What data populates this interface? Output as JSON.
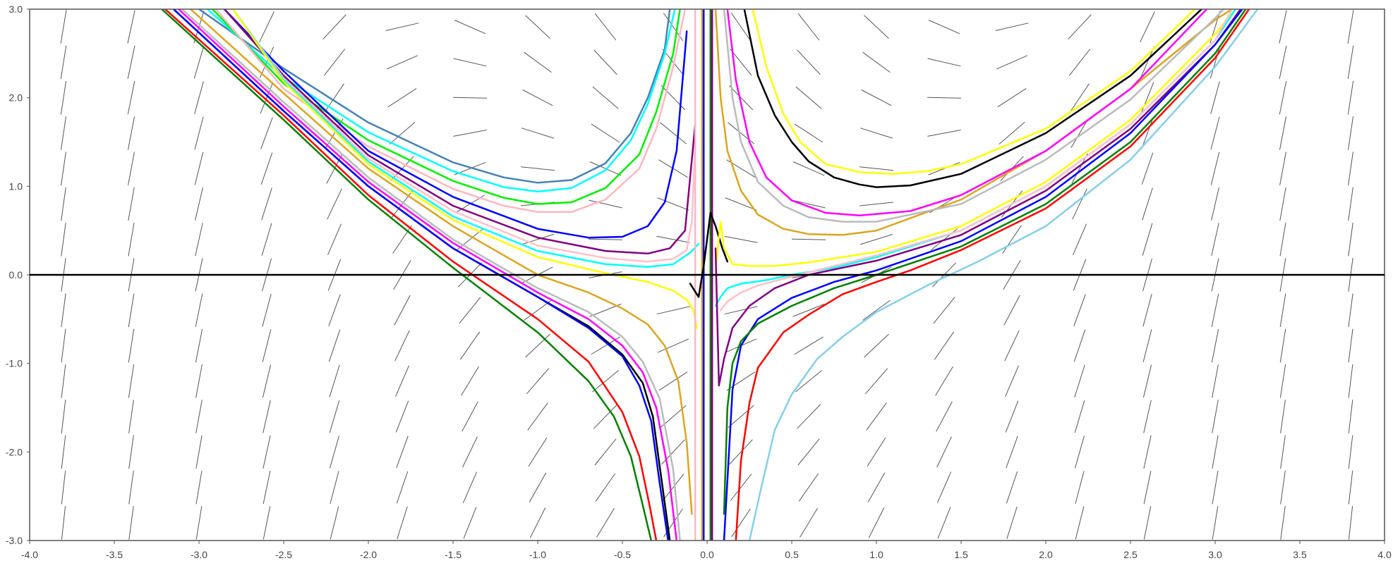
{
  "chart_data": {
    "type": "line",
    "title": "",
    "xlabel": "",
    "ylabel": "",
    "xlim": [
      -4.0,
      4.0
    ],
    "ylim": [
      -3.0,
      3.0
    ],
    "x_ticks": [
      "-4.0",
      "-3.5",
      "-3.0",
      "-2.5",
      "-2.0",
      "-1.5",
      "-1.0",
      "-0.5",
      "0.0",
      "0.5",
      "1.0",
      "1.5",
      "2.0",
      "2.5",
      "3.0",
      "3.5",
      "4.0"
    ],
    "y_ticks": [
      "3.0",
      "2.0",
      "1.0",
      "0.0",
      "-1.0",
      "-2.0",
      "-3.0"
    ],
    "grid": false,
    "legend": "none",
    "slope_field": {
      "x_step": 0.4,
      "y_step": 0.4,
      "segment_color": "#555555"
    },
    "series": [
      {
        "color": "#4682b4",
        "x": [
          -3.0,
          -2.5,
          -2.0,
          -1.5,
          -1.2,
          -1.0,
          -0.8,
          -0.6,
          -0.45,
          -0.35,
          -0.25,
          -0.22
        ],
        "y": [
          3.0,
          2.33,
          1.72,
          1.27,
          1.1,
          1.04,
          1.07,
          1.26,
          1.6,
          2.0,
          2.55,
          3.0
        ]
      },
      {
        "color": "#00ffff",
        "x": [
          -2.95,
          -2.5,
          -2.0,
          -1.5,
          -1.2,
          -1.0,
          -0.8,
          -0.6,
          -0.45,
          -0.35,
          -0.25,
          -0.19
        ],
        "y": [
          3.0,
          2.23,
          1.61,
          1.17,
          0.99,
          0.94,
          0.98,
          1.18,
          1.52,
          1.93,
          2.5,
          3.0
        ]
      },
      {
        "color": "#00ee00",
        "x": [
          -2.92,
          -2.5,
          -2.0,
          -1.5,
          -1.2,
          -1.0,
          -0.8,
          -0.6,
          -0.4,
          -0.3,
          -0.2,
          -0.16
        ],
        "y": [
          3.0,
          2.16,
          1.52,
          1.06,
          0.87,
          0.8,
          0.82,
          0.98,
          1.36,
          1.84,
          2.5,
          3.0
        ]
      },
      {
        "color": "#ffb6c1",
        "x": [
          -2.9,
          -2.5,
          -2.0,
          -1.5,
          -1.2,
          -1.0,
          -0.8,
          -0.6,
          -0.4,
          -0.3,
          -0.2,
          -0.13
        ],
        "y": [
          3.0,
          2.1,
          1.45,
          0.97,
          0.78,
          0.71,
          0.71,
          0.85,
          1.2,
          1.65,
          2.35,
          3.0
        ]
      },
      {
        "color": "#0000ff",
        "x": [
          -2.85,
          -2.5,
          -2.0,
          -1.5,
          -1.0,
          -0.7,
          -0.5,
          -0.35,
          -0.25,
          -0.18,
          -0.12
        ],
        "y": [
          3.0,
          2.3,
          1.4,
          0.88,
          0.52,
          0.42,
          0.43,
          0.55,
          0.82,
          1.4,
          2.75
        ]
      },
      {
        "color": "#800080",
        "x": [
          -2.85,
          -2.5,
          -2.0,
          -1.5,
          -1.0,
          -0.6,
          -0.35,
          -0.22,
          -0.13,
          -0.1,
          -0.07
        ],
        "y": [
          3.0,
          2.25,
          1.35,
          0.78,
          0.42,
          0.27,
          0.24,
          0.3,
          0.5,
          1.1,
          1.7
        ]
      },
      {
        "color": "#ffc0cb",
        "x": [
          -2.8,
          -2.5,
          -2.0,
          -1.5,
          -1.0,
          -0.6,
          -0.35,
          -0.2,
          -0.12,
          -0.09,
          -0.07
        ],
        "y": [
          3.0,
          2.22,
          1.31,
          0.72,
          0.33,
          0.19,
          0.15,
          0.18,
          0.28,
          0.6,
          1.5
        ]
      },
      {
        "color": "#00ffff",
        "x": [
          -2.8,
          -2.5,
          -2.0,
          -1.5,
          -1.0,
          -0.6,
          -0.35,
          -0.2,
          -0.1,
          -0.05
        ],
        "y": [
          3.0,
          2.2,
          1.28,
          0.66,
          0.27,
          0.12,
          0.09,
          0.12,
          0.25,
          0.35
        ]
      },
      {
        "color": "#ffff00",
        "x": [
          -2.8,
          -2.5,
          -2.0,
          -1.5,
          -1.0,
          -0.6,
          -0.35,
          -0.2,
          -0.12,
          -0.08,
          -0.06
        ],
        "y": [
          3.0,
          2.18,
          1.25,
          0.62,
          0.2,
          0.02,
          -0.08,
          -0.18,
          -0.28,
          -0.4,
          -0.6
        ]
      },
      {
        "color": "#daa520",
        "x": [
          -3.05,
          -2.5,
          -2.0,
          -1.5,
          -1.0,
          -0.7,
          -0.5,
          -0.35,
          -0.25,
          -0.17,
          -0.12,
          -0.09
        ],
        "y": [
          3.0,
          2.05,
          1.2,
          0.55,
          0.0,
          -0.2,
          -0.38,
          -0.56,
          -0.8,
          -1.2,
          -1.9,
          -2.7
        ]
      },
      {
        "color": "#bbbbbb",
        "x": [
          -3.1,
          -2.5,
          -2.0,
          -1.5,
          -1.0,
          -0.7,
          -0.5,
          -0.38,
          -0.28,
          -0.2,
          -0.16
        ],
        "y": [
          3.0,
          1.95,
          1.1,
          0.4,
          -0.15,
          -0.42,
          -0.7,
          -0.98,
          -1.4,
          -2.2,
          -3.0
        ]
      },
      {
        "color": "#ff00ff",
        "x": [
          -3.12,
          -2.5,
          -2.0,
          -1.5,
          -1.0,
          -0.7,
          -0.5,
          -0.38,
          -0.3,
          -0.23,
          -0.18
        ],
        "y": [
          3.0,
          1.9,
          1.05,
          0.36,
          -0.2,
          -0.5,
          -0.8,
          -1.1,
          -1.5,
          -2.2,
          -3.0
        ]
      },
      {
        "color": "#000000",
        "x": [
          -3.15,
          -2.5,
          -2.0,
          -1.5,
          -1.0,
          -0.7,
          -0.5,
          -0.38,
          -0.32,
          -0.27,
          -0.22
        ],
        "y": [
          3.0,
          1.85,
          1.0,
          0.3,
          -0.25,
          -0.58,
          -0.9,
          -1.22,
          -1.6,
          -2.3,
          -3.0
        ]
      },
      {
        "color": "#0000ff",
        "x": [
          -3.15,
          -2.5,
          -2.0,
          -1.5,
          -1.0,
          -0.7,
          -0.5,
          -0.4,
          -0.33,
          -0.28,
          -0.23
        ],
        "y": [
          3.0,
          1.85,
          1.0,
          0.3,
          -0.25,
          -0.6,
          -0.92,
          -1.25,
          -1.65,
          -2.35,
          -3.0
        ]
      },
      {
        "color": "#ff0000",
        "x": [
          -3.2,
          -2.5,
          -2.0,
          -1.5,
          -1.0,
          -0.7,
          -0.5,
          -0.4,
          -0.34,
          -0.3
        ],
        "y": [
          3.0,
          1.8,
          0.9,
          0.15,
          -0.5,
          -0.98,
          -1.55,
          -2.05,
          -2.6,
          -3.0
        ]
      },
      {
        "color": "#008000",
        "x": [
          -3.22,
          -2.5,
          -2.0,
          -1.5,
          -1.0,
          -0.7,
          -0.55,
          -0.45,
          -0.38,
          -0.33
        ],
        "y": [
          3.0,
          1.75,
          0.85,
          0.08,
          -0.65,
          -1.2,
          -1.6,
          -2.05,
          -2.6,
          -3.0
        ]
      },
      {
        "color": "#ffb6c1",
        "x": [
          -0.07,
          -0.07,
          -0.07,
          -0.07,
          -0.07
        ],
        "y": [
          3.0,
          1.5,
          0.0,
          -1.5,
          -3.0
        ]
      },
      {
        "color": "#daa520",
        "x": [
          -0.03,
          -0.03,
          -0.03
        ],
        "y": [
          3.0,
          0.0,
          -3.0
        ]
      },
      {
        "color": "#0000ff",
        "x": [
          -0.02,
          -0.02,
          -0.02
        ],
        "y": [
          3.0,
          0.0,
          -3.0
        ]
      },
      {
        "color": "#008000",
        "x": [
          0.02,
          0.02,
          0.02
        ],
        "y": [
          3.0,
          0.0,
          -3.0
        ]
      },
      {
        "color": "#800080",
        "x": [
          0.03,
          0.03,
          0.03
        ],
        "y": [
          3.0,
          0.0,
          -3.0
        ]
      },
      {
        "color": "#000000",
        "x": [
          -0.1,
          -0.05,
          -0.02,
          0.02,
          0.05,
          0.09,
          0.12
        ],
        "y": [
          -0.1,
          -0.25,
          0.1,
          0.7,
          0.55,
          0.3,
          0.15
        ]
      },
      {
        "color": "#daa520",
        "x": [
          0.05,
          0.08,
          0.12,
          0.2,
          0.3,
          0.45,
          0.6,
          0.8,
          1.0,
          1.5,
          2.0,
          2.5,
          3.0,
          3.1
        ],
        "y": [
          3.0,
          2.0,
          1.4,
          0.95,
          0.68,
          0.52,
          0.46,
          0.45,
          0.5,
          0.85,
          1.4,
          2.1,
          2.88,
          3.0
        ]
      },
      {
        "color": "#ff00ff",
        "x": [
          0.12,
          0.17,
          0.25,
          0.35,
          0.5,
          0.7,
          0.9,
          1.2,
          1.5,
          2.0,
          2.5,
          2.95
        ],
        "y": [
          3.0,
          2.2,
          1.5,
          1.1,
          0.84,
          0.7,
          0.67,
          0.72,
          0.9,
          1.4,
          2.1,
          3.0
        ]
      },
      {
        "color": "#bbbbbb",
        "x": [
          0.1,
          0.15,
          0.2,
          0.3,
          0.45,
          0.6,
          0.8,
          1.0,
          1.5,
          2.0,
          2.5,
          3.0,
          3.05
        ],
        "y": [
          3.0,
          2.0,
          1.5,
          1.05,
          0.78,
          0.65,
          0.6,
          0.6,
          0.8,
          1.3,
          1.98,
          2.9,
          3.0
        ]
      },
      {
        "color": "#000000",
        "x": [
          0.22,
          0.3,
          0.4,
          0.5,
          0.6,
          0.75,
          0.9,
          1.0,
          1.2,
          1.5,
          2.0,
          2.5,
          2.92
        ],
        "y": [
          3.0,
          2.25,
          1.8,
          1.5,
          1.28,
          1.1,
          1.02,
          0.99,
          1.01,
          1.14,
          1.6,
          2.25,
          3.0
        ]
      },
      {
        "color": "#ffff00",
        "x": [
          0.27,
          0.35,
          0.45,
          0.55,
          0.7,
          0.9,
          1.1,
          1.3,
          1.5,
          2.0,
          2.5,
          2.88
        ],
        "y": [
          3.0,
          2.35,
          1.82,
          1.5,
          1.25,
          1.16,
          1.14,
          1.17,
          1.25,
          1.65,
          2.3,
          3.0
        ]
      },
      {
        "color": "#ffff00",
        "x": [
          0.05,
          0.08,
          0.1,
          0.15,
          0.25,
          0.4,
          0.6,
          1.0,
          1.5,
          2.0,
          2.5,
          3.0,
          3.12
        ],
        "y": [
          0.05,
          0.6,
          0.3,
          0.12,
          0.1,
          0.1,
          0.14,
          0.26,
          0.55,
          1.05,
          1.75,
          2.72,
          3.0
        ]
      },
      {
        "color": "#00ffff",
        "x": [
          0.05,
          0.08,
          0.12,
          0.2,
          0.35,
          0.5,
          0.75,
          1.0,
          1.5,
          2.0,
          2.5,
          3.0,
          3.12
        ],
        "y": [
          -0.35,
          -0.25,
          -0.15,
          -0.1,
          -0.06,
          0.0,
          0.08,
          0.2,
          0.5,
          1.0,
          1.7,
          2.65,
          3.0
        ]
      },
      {
        "color": "#ffc0cb",
        "x": [
          0.08,
          0.12,
          0.2,
          0.3,
          0.5,
          0.75,
          1.0,
          1.5,
          2.0,
          2.5,
          3.0,
          3.1
        ],
        "y": [
          -0.4,
          -0.3,
          -0.2,
          -0.12,
          -0.02,
          0.1,
          0.22,
          0.5,
          1.0,
          1.7,
          2.65,
          3.0
        ]
      },
      {
        "color": "#800080",
        "x": [
          0.05,
          0.07,
          0.1,
          0.15,
          0.25,
          0.4,
          0.6,
          0.8,
          1.0,
          1.5,
          2.0,
          2.5,
          3.0,
          3.15
        ],
        "y": [
          0.3,
          -1.25,
          -0.95,
          -0.6,
          -0.35,
          -0.15,
          0.0,
          0.08,
          0.16,
          0.45,
          0.95,
          1.65,
          2.6,
          3.0
        ]
      },
      {
        "color": "#0000ff",
        "x": [
          0.1,
          0.15,
          0.2,
          0.3,
          0.5,
          0.75,
          1.0,
          1.5,
          2.0,
          2.5,
          3.0,
          3.16
        ],
        "y": [
          -3.0,
          -1.3,
          -0.8,
          -0.5,
          -0.26,
          -0.08,
          0.05,
          0.38,
          0.88,
          1.6,
          2.6,
          3.0
        ]
      },
      {
        "color": "#008000",
        "x": [
          0.1,
          0.12,
          0.15,
          0.2,
          0.3,
          0.5,
          0.75,
          1.0,
          1.5,
          2.0,
          2.5,
          3.0,
          3.18
        ],
        "y": [
          -2.7,
          -1.5,
          -1.0,
          -0.75,
          -0.55,
          -0.35,
          -0.15,
          0.0,
          0.32,
          0.8,
          1.5,
          2.5,
          3.0
        ]
      },
      {
        "color": "#ff0000",
        "x": [
          0.17,
          0.2,
          0.25,
          0.3,
          0.45,
          0.6,
          0.8,
          1.0,
          1.2,
          1.5,
          2.0,
          2.5,
          3.0,
          3.2
        ],
        "y": [
          -3.0,
          -2.1,
          -1.45,
          -1.05,
          -0.65,
          -0.45,
          -0.22,
          -0.08,
          0.05,
          0.28,
          0.75,
          1.45,
          2.45,
          3.0
        ]
      },
      {
        "color": "#87ceeb",
        "x": [
          0.25,
          0.32,
          0.4,
          0.5,
          0.65,
          0.8,
          1.0,
          1.3,
          1.6,
          2.0,
          2.5,
          3.0,
          3.25
        ],
        "y": [
          -3.0,
          -2.4,
          -1.75,
          -1.35,
          -0.95,
          -0.7,
          -0.42,
          -0.12,
          0.15,
          0.55,
          1.3,
          2.35,
          3.0
        ]
      }
    ]
  }
}
